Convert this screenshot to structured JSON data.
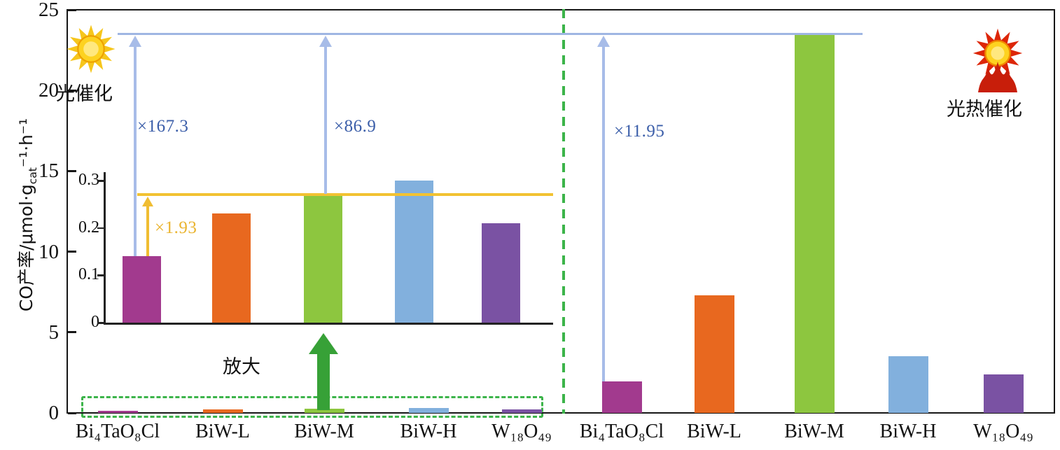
{
  "labels": {
    "photocatalysis": "光催化",
    "photothermal": "光热催化",
    "magnify": "放大"
  },
  "annotations": {
    "x167": "×167.3",
    "x869": "×86.9",
    "x1195": "×11.95",
    "x193": "×1.93"
  },
  "chart_data": {
    "type": "bar",
    "title": "",
    "ylabel": {
      "prefix": "CO产率/μmol·g",
      "sub": "cat",
      "suffix": "⁻¹·h⁻¹"
    },
    "ylim": [
      0,
      25
    ],
    "yticks": [
      0,
      5,
      10,
      15,
      20,
      25
    ],
    "grid": false,
    "legend_position": "none",
    "categories": [
      "Bi₄TaO₈Cl",
      "BiW-L",
      "BiW-M",
      "BiW-H",
      "W₁₈O₄₉"
    ],
    "bar_colors": [
      "#a23a8e",
      "#e8681f",
      "#8dc63f",
      "#82b0dd",
      "#7a52a3"
    ],
    "series": [
      {
        "name": "光催化",
        "values": [
          0.14,
          0.23,
          0.27,
          0.3,
          0.21
        ]
      },
      {
        "name": "光热催化",
        "values": [
          1.97,
          7.3,
          23.5,
          3.5,
          2.4
        ]
      }
    ],
    "reference_line": {
      "value": 23.5,
      "color": "#9fb6e3"
    },
    "inset": {
      "ylim": [
        0,
        0.3
      ],
      "yticks": [
        0,
        0.1,
        0.2,
        0.3
      ],
      "values": [
        0.14,
        0.23,
        0.27,
        0.3,
        0.21
      ],
      "reference_line": {
        "value": 0.27,
        "color": "#f2c232"
      }
    }
  }
}
